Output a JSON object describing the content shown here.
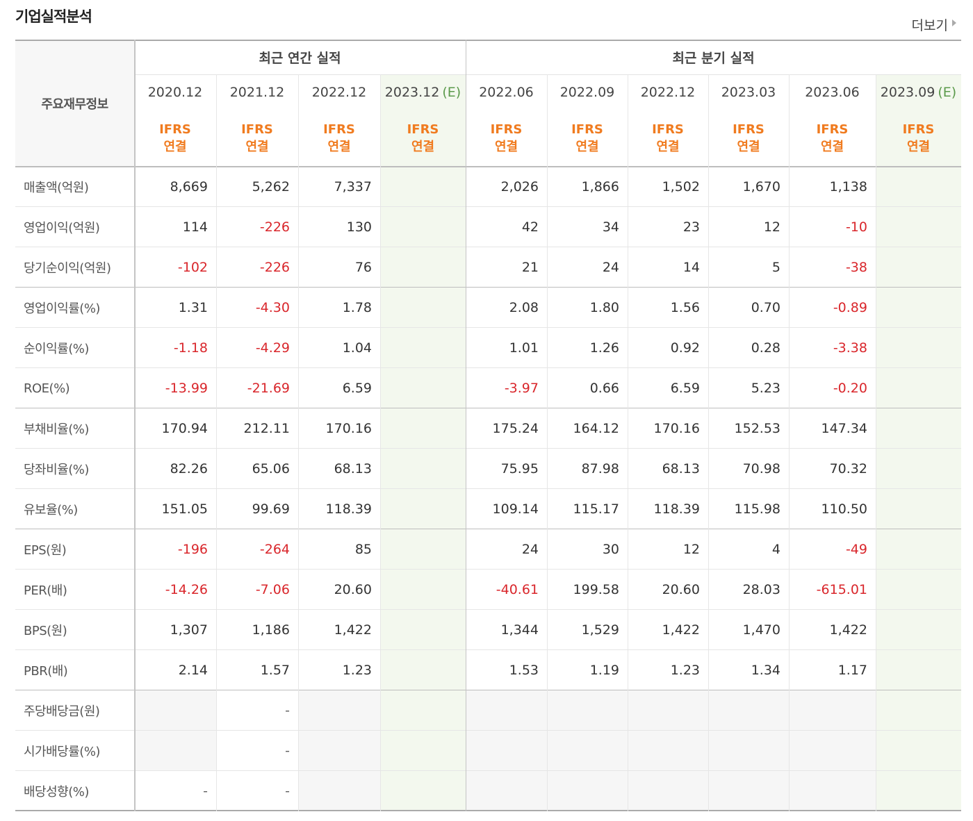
{
  "header": {
    "title": "기업실적분석",
    "more": "더보기"
  },
  "table": {
    "corner": "주요재무정보",
    "groups": [
      {
        "label": "최근 연간 실적",
        "columns": [
          {
            "period": "2020.12",
            "standard": "IFRS",
            "scope": "연결"
          },
          {
            "period": "2021.12",
            "standard": "IFRS",
            "scope": "연결"
          },
          {
            "period": "2022.12",
            "standard": "IFRS",
            "scope": "연결"
          },
          {
            "period": "2023.12",
            "estimate": "(E)",
            "standard": "IFRS",
            "scope": "연결"
          }
        ]
      },
      {
        "label": "최근 분기 실적",
        "columns": [
          {
            "period": "2022.06",
            "standard": "IFRS",
            "scope": "연결"
          },
          {
            "period": "2022.09",
            "standard": "IFRS",
            "scope": "연결"
          },
          {
            "period": "2022.12",
            "standard": "IFRS",
            "scope": "연결"
          },
          {
            "period": "2023.03",
            "standard": "IFRS",
            "scope": "연결"
          },
          {
            "period": "2023.06",
            "standard": "IFRS",
            "scope": "연결"
          },
          {
            "period": "2023.09",
            "estimate": "(E)",
            "standard": "IFRS",
            "scope": "연결"
          }
        ]
      }
    ],
    "sections": [
      [
        {
          "label": "매출액(억원)",
          "values": [
            "8,669",
            "5,262",
            "7,337",
            null,
            "2,026",
            "1,866",
            "1,502",
            "1,670",
            "1,138",
            null
          ]
        },
        {
          "label": "영업이익(억원)",
          "values": [
            "114",
            "-226",
            "130",
            null,
            "42",
            "34",
            "23",
            "12",
            "-10",
            null
          ]
        },
        {
          "label": "당기순이익(억원)",
          "values": [
            "-102",
            "-226",
            "76",
            null,
            "21",
            "24",
            "14",
            "5",
            "-38",
            null
          ]
        }
      ],
      [
        {
          "label": "영업이익률(%)",
          "values": [
            "1.31",
            "-4.30",
            "1.78",
            null,
            "2.08",
            "1.80",
            "1.56",
            "0.70",
            "-0.89",
            null
          ]
        },
        {
          "label": "순이익률(%)",
          "values": [
            "-1.18",
            "-4.29",
            "1.04",
            null,
            "1.01",
            "1.26",
            "0.92",
            "0.28",
            "-3.38",
            null
          ]
        },
        {
          "label": "ROE(%)",
          "values": [
            "-13.99",
            "-21.69",
            "6.59",
            null,
            "-3.97",
            "0.66",
            "6.59",
            "5.23",
            "-0.20",
            null
          ]
        }
      ],
      [
        {
          "label": "부채비율(%)",
          "values": [
            "170.94",
            "212.11",
            "170.16",
            null,
            "175.24",
            "164.12",
            "170.16",
            "152.53",
            "147.34",
            null
          ]
        },
        {
          "label": "당좌비율(%)",
          "values": [
            "82.26",
            "65.06",
            "68.13",
            null,
            "75.95",
            "87.98",
            "68.13",
            "70.98",
            "70.32",
            null
          ]
        },
        {
          "label": "유보율(%)",
          "values": [
            "151.05",
            "99.69",
            "118.39",
            null,
            "109.14",
            "115.17",
            "118.39",
            "115.98",
            "110.50",
            null
          ]
        }
      ],
      [
        {
          "label": "EPS(원)",
          "values": [
            "-196",
            "-264",
            "85",
            null,
            "24",
            "30",
            "12",
            "4",
            "-49",
            null
          ]
        },
        {
          "label": "PER(배)",
          "values": [
            "-14.26",
            "-7.06",
            "20.60",
            null,
            "-40.61",
            "199.58",
            "20.60",
            "28.03",
            "-615.01",
            null
          ]
        },
        {
          "label": "BPS(원)",
          "values": [
            "1,307",
            "1,186",
            "1,422",
            null,
            "1,344",
            "1,529",
            "1,422",
            "1,470",
            "1,422",
            null
          ]
        },
        {
          "label": "PBR(배)",
          "values": [
            "2.14",
            "1.57",
            "1.23",
            null,
            "1.53",
            "1.19",
            "1.23",
            "1.34",
            "1.17",
            null
          ]
        }
      ],
      [
        {
          "label": "주당배당금(원)",
          "values": [
            null,
            "-",
            null,
            null,
            null,
            null,
            null,
            null,
            null,
            null
          ]
        },
        {
          "label": "시가배당률(%)",
          "values": [
            null,
            "-",
            null,
            null,
            null,
            null,
            null,
            null,
            null,
            null
          ]
        },
        {
          "label": "배당성향(%)",
          "values": [
            "-",
            "-",
            null,
            null,
            null,
            null,
            null,
            null,
            null,
            null
          ]
        }
      ]
    ]
  }
}
